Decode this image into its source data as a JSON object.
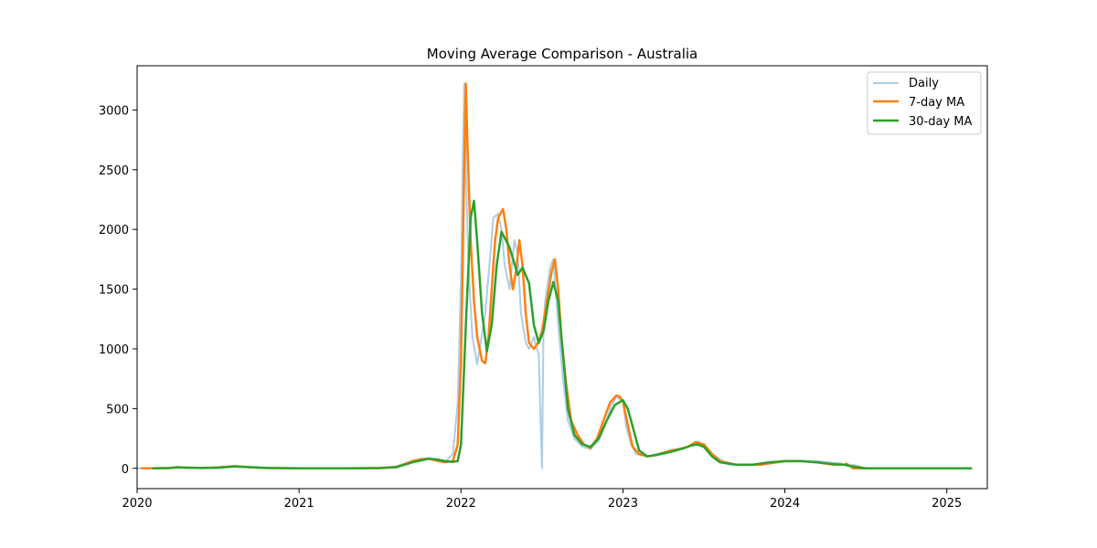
{
  "chart_data": {
    "type": "line",
    "title": "Moving Average Comparison - Australia",
    "xlabel": "",
    "ylabel": "",
    "xlim": [
      2020.0,
      2025.25
    ],
    "ylim": [
      -170,
      3370
    ],
    "x_ticks": [
      2020,
      2021,
      2022,
      2023,
      2024,
      2025
    ],
    "x_tick_labels": [
      "2020",
      "2021",
      "2022",
      "2023",
      "2024",
      "2025"
    ],
    "y_ticks": [
      0,
      500,
      1000,
      1500,
      2000,
      2500,
      3000
    ],
    "y_tick_labels": [
      "0",
      "500",
      "1000",
      "1500",
      "2000",
      "2500",
      "3000"
    ],
    "grid": false,
    "legend_position": "top-right",
    "colors": {
      "daily": "#aecde6",
      "ma7": "#ff7f0e",
      "ma30": "#2ca02c"
    },
    "series": [
      {
        "name": "Daily",
        "x": [
          2020.0,
          2020.1,
          2020.2,
          2020.25,
          2020.3,
          2020.4,
          2020.5,
          2020.6,
          2020.7,
          2020.8,
          2021.0,
          2021.3,
          2021.5,
          2021.6,
          2021.7,
          2021.75,
          2021.8,
          2021.85,
          2021.9,
          2021.95,
          2021.98,
          2022.0,
          2022.01,
          2022.02,
          2022.03,
          2022.04,
          2022.05,
          2022.07,
          2022.1,
          2022.15,
          2022.18,
          2022.2,
          2022.23,
          2022.25,
          2022.27,
          2022.3,
          2022.33,
          2022.35,
          2022.37,
          2022.4,
          2022.42,
          2022.45,
          2022.48,
          2022.5,
          2022.51,
          2022.52,
          2022.55,
          2022.57,
          2022.6,
          2022.63,
          2022.66,
          2022.7,
          2022.75,
          2022.8,
          2022.85,
          2022.9,
          2022.93,
          2022.96,
          2023.0,
          2023.02,
          2023.05,
          2023.08,
          2023.15,
          2023.3,
          2023.4,
          2023.45,
          2023.5,
          2023.55,
          2023.65,
          2023.8,
          2024.0,
          2024.2,
          2024.35,
          2024.38,
          2024.42,
          2024.5,
          2024.7,
          2025.0,
          2025.15
        ],
        "values": [
          0,
          0,
          3,
          12,
          5,
          3,
          10,
          20,
          8,
          2,
          0,
          0,
          3,
          15,
          60,
          80,
          85,
          60,
          50,
          120,
          550,
          1590,
          2500,
          3220,
          2520,
          2000,
          1600,
          1100,
          870,
          1300,
          1780,
          2100,
          2130,
          2000,
          1700,
          1500,
          1910,
          1800,
          1300,
          1050,
          1000,
          1100,
          950,
          0,
          1200,
          1400,
          1680,
          1750,
          1200,
          750,
          400,
          250,
          180,
          160,
          230,
          400,
          530,
          600,
          560,
          350,
          200,
          120,
          100,
          150,
          180,
          220,
          200,
          120,
          30,
          25,
          60,
          60,
          40,
          20,
          30,
          0,
          0,
          0,
          0
        ]
      },
      {
        "name": "7-day MA",
        "x": [
          2020.03,
          2020.1,
          2020.2,
          2020.25,
          2020.3,
          2020.4,
          2020.5,
          2020.6,
          2020.7,
          2020.8,
          2021.0,
          2021.3,
          2021.5,
          2021.6,
          2021.65,
          2021.7,
          2021.75,
          2021.8,
          2021.85,
          2021.9,
          2021.95,
          2021.98,
          2022.0,
          2022.02,
          2022.03,
          2022.04,
          2022.06,
          2022.08,
          2022.1,
          2022.13,
          2022.15,
          2022.17,
          2022.19,
          2022.21,
          2022.23,
          2022.26,
          2022.28,
          2022.3,
          2022.32,
          2022.34,
          2022.36,
          2022.38,
          2022.4,
          2022.42,
          2022.45,
          2022.48,
          2022.5,
          2022.53,
          2022.56,
          2022.58,
          2022.6,
          2022.62,
          2022.65,
          2022.68,
          2022.72,
          2022.76,
          2022.8,
          2022.84,
          2022.88,
          2022.92,
          2022.96,
          2022.98,
          2023.0,
          2023.02,
          2023.04,
          2023.06,
          2023.1,
          2023.15,
          2023.2,
          2023.3,
          2023.35,
          2023.4,
          2023.45,
          2023.5,
          2023.55,
          2023.6,
          2023.7,
          2023.8,
          2023.85,
          2024.0,
          2024.1,
          2024.2,
          2024.3,
          2024.37,
          2024.38,
          2024.42,
          2024.45,
          2024.55,
          2024.8,
          2025.0,
          2025.15
        ],
        "values": [
          0,
          0,
          3,
          10,
          6,
          3,
          8,
          18,
          9,
          3,
          0,
          0,
          3,
          12,
          35,
          60,
          75,
          80,
          65,
          50,
          60,
          200,
          900,
          2500,
          3220,
          2700,
          1900,
          1400,
          1100,
          900,
          880,
          1100,
          1500,
          1900,
          2100,
          2170,
          2000,
          1700,
          1500,
          1650,
          1910,
          1700,
          1300,
          1050,
          1000,
          1060,
          1150,
          1400,
          1650,
          1750,
          1500,
          1100,
          700,
          400,
          280,
          200,
          170,
          250,
          400,
          550,
          610,
          600,
          560,
          430,
          300,
          180,
          120,
          100,
          110,
          150,
          160,
          180,
          220,
          200,
          120,
          60,
          30,
          30,
          30,
          60,
          60,
          50,
          30,
          30,
          40,
          0,
          0,
          0,
          0,
          0,
          0
        ]
      },
      {
        "name": "30-day MA",
        "x": [
          2020.1,
          2020.2,
          2020.25,
          2020.3,
          2020.4,
          2020.5,
          2020.6,
          2020.7,
          2020.8,
          2021.0,
          2021.3,
          2021.5,
          2021.6,
          2021.7,
          2021.8,
          2021.85,
          2021.9,
          2021.95,
          2021.98,
          2022.0,
          2022.03,
          2022.06,
          2022.08,
          2022.1,
          2022.13,
          2022.16,
          2022.19,
          2022.22,
          2022.25,
          2022.3,
          2022.35,
          2022.38,
          2022.42,
          2022.45,
          2022.48,
          2022.51,
          2022.54,
          2022.57,
          2022.6,
          2022.63,
          2022.66,
          2022.7,
          2022.75,
          2022.8,
          2022.85,
          2022.9,
          2022.95,
          2023.0,
          2023.03,
          2023.06,
          2023.1,
          2023.15,
          2023.2,
          2023.3,
          2023.38,
          2023.42,
          2023.46,
          2023.5,
          2023.55,
          2023.6,
          2023.7,
          2023.8,
          2023.9,
          2024.0,
          2024.1,
          2024.2,
          2024.3,
          2024.37,
          2024.42,
          2024.5,
          2024.7,
          2025.0,
          2025.15
        ],
        "values": [
          0,
          2,
          8,
          6,
          3,
          5,
          15,
          10,
          3,
          0,
          0,
          2,
          10,
          50,
          80,
          75,
          60,
          55,
          60,
          200,
          1200,
          2100,
          2240,
          1900,
          1300,
          980,
          1200,
          1700,
          1980,
          1850,
          1620,
          1680,
          1550,
          1200,
          1050,
          1150,
          1400,
          1560,
          1400,
          950,
          500,
          280,
          200,
          180,
          250,
          400,
          530,
          570,
          500,
          350,
          150,
          100,
          110,
          140,
          170,
          190,
          200,
          180,
          100,
          50,
          30,
          30,
          50,
          60,
          60,
          50,
          35,
          30,
          15,
          0,
          0,
          0,
          0
        ]
      }
    ]
  }
}
